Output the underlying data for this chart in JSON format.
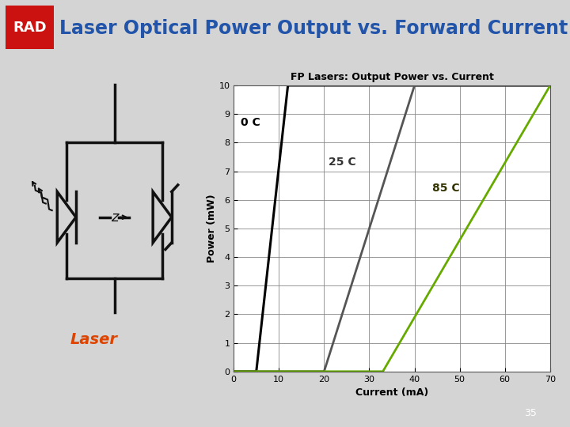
{
  "title": "Laser Optical Power Output vs. Forward Current",
  "slide_bg": "#d4d4d4",
  "title_color": "#2255aa",
  "title_fontsize": 17,
  "rad_box_color": "#cc1111",
  "rad_text": "RAD",
  "chart_title": "FP Lasers: Output Power vs. Current",
  "chart_xlabel": "Current (mA)",
  "chart_ylabel": "Power (mW)",
  "chart_xlim": [
    0,
    70
  ],
  "chart_ylim": [
    0,
    10
  ],
  "chart_xticks": [
    0,
    10,
    20,
    30,
    40,
    50,
    60,
    70
  ],
  "chart_yticks": [
    0,
    1,
    2,
    3,
    4,
    5,
    6,
    7,
    8,
    9,
    10
  ],
  "curve_0C_color": "#000000",
  "curve_25C_color": "#555555",
  "curve_85C_color": "#66aa00",
  "laser_label_color": "#dd4400",
  "slide_number": "35",
  "page_num_bg": "#7799bb",
  "chart_bg": "#ffffff",
  "chart_border_color": "#aaaaaa"
}
